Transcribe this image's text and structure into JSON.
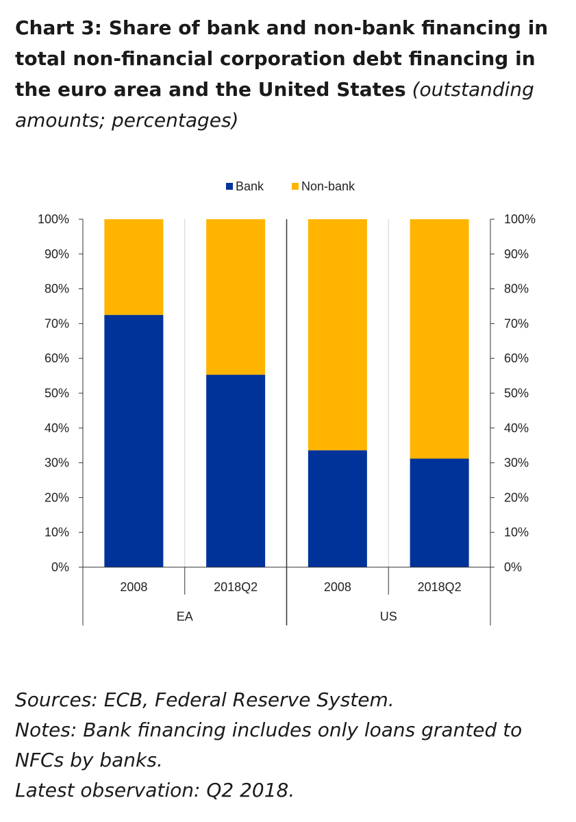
{
  "title": {
    "bold": "Chart 3: Share of bank and non-bank financing in total non-financial corporation debt financing in the euro area and the United States",
    "italic": "(outstanding amounts; percentages)"
  },
  "chart_data": {
    "type": "bar",
    "stacked": true,
    "groups": [
      "EA",
      "US"
    ],
    "categories": [
      "2008",
      "2018Q2",
      "2008",
      "2018Q2"
    ],
    "category_groups": [
      "EA",
      "EA",
      "US",
      "US"
    ],
    "series": [
      {
        "name": "Bank",
        "values": [
          72.5,
          55.3,
          33.6,
          31.2
        ],
        "color": "#003399"
      },
      {
        "name": "Non-bank",
        "values": [
          27.5,
          44.7,
          66.4,
          68.8
        ],
        "color": "#FFB400"
      }
    ],
    "y_ticks": [
      "0%",
      "10%",
      "20%",
      "30%",
      "40%",
      "50%",
      "60%",
      "70%",
      "80%",
      "90%",
      "100%"
    ],
    "ylim": [
      0,
      100
    ],
    "y_axis": "both sides",
    "grid": "vertical lines between bars",
    "legend_position": "top"
  },
  "notes": [
    "Sources: ECB, Federal Reserve System.",
    "Notes: Bank financing includes only loans granted to",
    "NFCs by banks.",
    "Latest observation: Q2 2018."
  ]
}
